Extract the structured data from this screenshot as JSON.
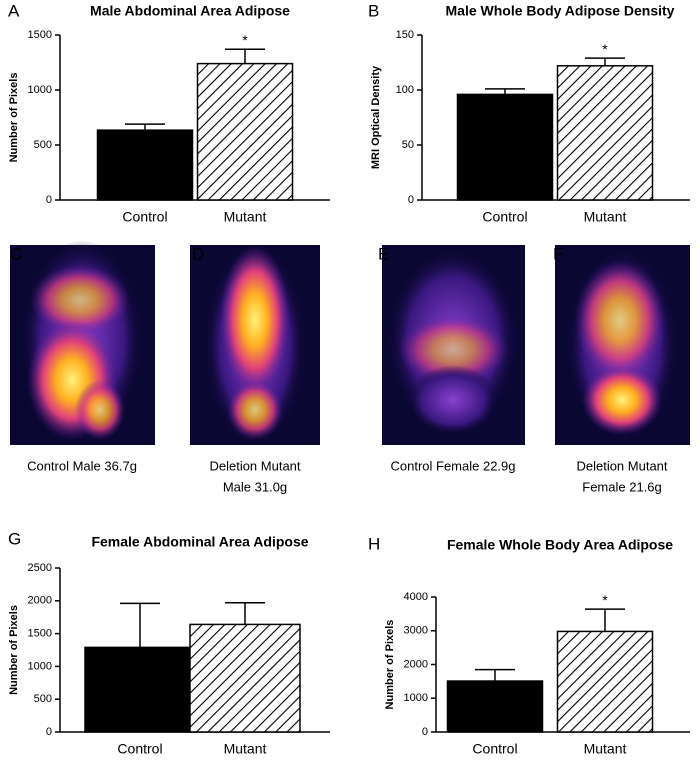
{
  "chart_data": [
    {
      "type": "bar",
      "panel": "A",
      "title": "Male Abdominal Area Adipose",
      "y_label": "Number of Pixels",
      "categories": [
        "Control",
        "Mutant"
      ],
      "values": [
        635,
        1240
      ],
      "errors": [
        55,
        130
      ],
      "value_annotations": [
        null,
        "*"
      ],
      "colors": [
        "#000000",
        "#000000"
      ],
      "hatched": [
        false,
        true
      ],
      "ylim": [
        0,
        1500
      ],
      "yticks": [
        0,
        500,
        1000,
        1500
      ]
    },
    {
      "type": "bar",
      "panel": "B",
      "title": "Male Whole Body Adipose Density",
      "y_label": "MRI Optical Density",
      "categories": [
        "Control",
        "Mutant"
      ],
      "values": [
        96,
        122
      ],
      "errors": [
        5,
        7
      ],
      "value_annotations": [
        null,
        "*"
      ],
      "colors": [
        "#000000",
        "#000000"
      ],
      "hatched": [
        false,
        true
      ],
      "ylim": [
        0,
        150
      ],
      "yticks": [
        0,
        50,
        100,
        150
      ]
    },
    {
      "type": "bar",
      "panel": "G",
      "title": "Female Abdominal Area Adipose",
      "y_label": "Number of Pixels",
      "categories": [
        "Control",
        "Mutant"
      ],
      "values": [
        1290,
        1640
      ],
      "errors": [
        670,
        330
      ],
      "colors": [
        "#000000",
        "#000000"
      ],
      "hatched": [
        false,
        true
      ],
      "ylim": [
        0,
        2500
      ],
      "yticks": [
        0,
        500,
        1000,
        1500,
        2000,
        2500
      ]
    },
    {
      "type": "bar",
      "panel": "H",
      "title": "Female Whole Body Area Adipose",
      "y_label": "Number of Pixels",
      "categories": [
        "Control",
        "Mutant"
      ],
      "values": [
        1510,
        2980
      ],
      "errors": [
        340,
        660
      ],
      "value_annotations": [
        null,
        "*"
      ],
      "colors": [
        "#000000",
        "#000000"
      ],
      "hatched": [
        false,
        true
      ],
      "ylim": [
        0,
        4000
      ],
      "yticks": [
        0,
        1000,
        2000,
        3000,
        4000
      ]
    }
  ],
  "images": [
    {
      "label": "C",
      "caption": [
        "Control Male 36.7g"
      ]
    },
    {
      "label": "D",
      "caption": [
        "Deletion Mutant",
        "Male 31.0g"
      ]
    },
    {
      "label": "E",
      "caption": [
        "Control Female 22.9g"
      ]
    },
    {
      "label": "F",
      "caption": [
        "Deletion Mutant",
        "Female 21.6g"
      ]
    }
  ]
}
